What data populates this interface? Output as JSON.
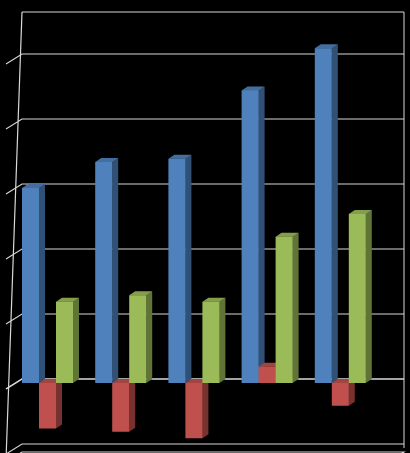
{
  "chart_data": {
    "type": "bar",
    "style": "3d-clustered-column",
    "categories": [
      "",
      "",
      "",
      "",
      ""
    ],
    "series": [
      {
        "values": [
          6.0,
          6.8,
          6.9,
          9.0,
          10.3
        ],
        "color": "#4f81bd"
      },
      {
        "values": [
          -1.4,
          -1.5,
          -1.7,
          0.5,
          -0.7
        ],
        "color": "#c0504d"
      },
      {
        "values": [
          2.5,
          2.7,
          2.5,
          4.5,
          5.2
        ],
        "color": "#9bbb59"
      }
    ],
    "ylim": [
      -2,
      10
    ],
    "grid": true,
    "legend": "none",
    "background": "#000000",
    "gridline_color": "#d9d9d9"
  }
}
